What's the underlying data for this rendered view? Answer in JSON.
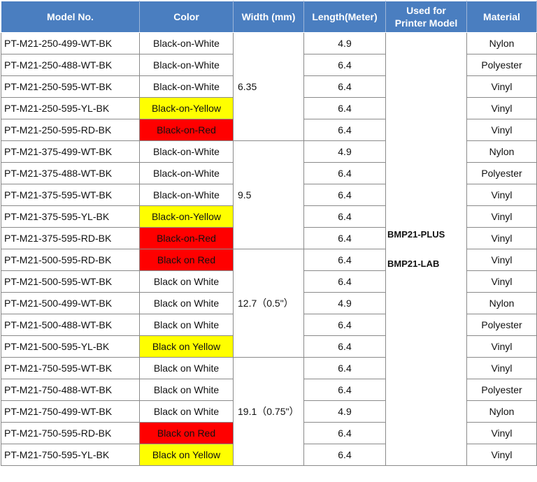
{
  "headers": {
    "model": "Model No.",
    "color": "Color",
    "width": "Width (mm)",
    "length": "Length(Meter)",
    "printer_line1": "Used for",
    "printer_line2": "Printer Model",
    "material": "Material"
  },
  "width_groups": [
    "6.35",
    "9.5",
    "12.7（0.5\"）",
    "19.1（0.75\"）"
  ],
  "printer_models": [
    "BMP21-PLUS",
    "BMP21-LAB"
  ],
  "colors": {
    "white": "#ffffff",
    "yellow": "#ffff00",
    "red": "#ff0000",
    "header": "#4a7ec0"
  },
  "rows": [
    {
      "model": "PT-M21-250-499-WT-BK",
      "color": "Black-on-White",
      "length": "4.9",
      "material": "Nylon"
    },
    {
      "model": "PT-M21-250-488-WT-BK",
      "color": "Black-on-White",
      "length": "6.4",
      "material": "Polyester"
    },
    {
      "model": "PT-M21-250-595-WT-BK",
      "color": "Black-on-White",
      "length": "6.4",
      "material": "Vinyl"
    },
    {
      "model": "PT-M21-250-595-YL-BK",
      "color": "Black-on-Yellow",
      "length": "6.4",
      "material": "Vinyl"
    },
    {
      "model": "PT-M21-250-595-RD-BK",
      "color": "Black-on-Red",
      "length": "6.4",
      "material": "Vinyl"
    },
    {
      "model": "PT-M21-375-499-WT-BK",
      "color": "Black-on-White",
      "length": "4.9",
      "material": "Nylon"
    },
    {
      "model": "PT-M21-375-488-WT-BK",
      "color": "Black-on-White",
      "length": "6.4",
      "material": "Polyester"
    },
    {
      "model": "PT-M21-375-595-WT-BK",
      "color": "Black-on-White",
      "length": "6.4",
      "material": "Vinyl"
    },
    {
      "model": "PT-M21-375-595-YL-BK",
      "color": "Black-on-Yellow",
      "length": "6.4",
      "material": "Vinyl"
    },
    {
      "model": "PT-M21-375-595-RD-BK",
      "color": "Black-on-Red",
      "length": "6.4",
      "material": "Vinyl"
    },
    {
      "model": "PT-M21-500-595-RD-BK",
      "color": "Black on Red",
      "length": "6.4",
      "material": "Vinyl"
    },
    {
      "model": "PT-M21-500-595-WT-BK",
      "color": "Black on White",
      "length": "6.4",
      "material": "Vinyl"
    },
    {
      "model": "PT-M21-500-499-WT-BK",
      "color": "Black on White",
      "length": "4.9",
      "material": "Nylon"
    },
    {
      "model": "PT-M21-500-488-WT-BK",
      "color": "Black on White",
      "length": "6.4",
      "material": "Polyester"
    },
    {
      "model": "PT-M21-500-595-YL-BK",
      "color": "Black on Yellow",
      "length": "6.4",
      "material": "Vinyl"
    },
    {
      "model": "PT-M21-750-595-WT-BK",
      "color": "Black on White",
      "length": "6.4",
      "material": "Vinyl"
    },
    {
      "model": "PT-M21-750-488-WT-BK",
      "color": "Black on White",
      "length": "6.4",
      "material": "Polyester"
    },
    {
      "model": "PT-M21-750-499-WT-BK",
      "color": "Black on White",
      "length": "4.9",
      "material": "Nylon"
    },
    {
      "model": "PT-M21-750-595-RD-BK",
      "color": "Black on Red",
      "length": "6.4",
      "material": "Vinyl"
    },
    {
      "model": "PT-M21-750-595-YL-BK",
      "color": "Black on Yellow",
      "length": "6.4",
      "material": "Vinyl"
    }
  ]
}
